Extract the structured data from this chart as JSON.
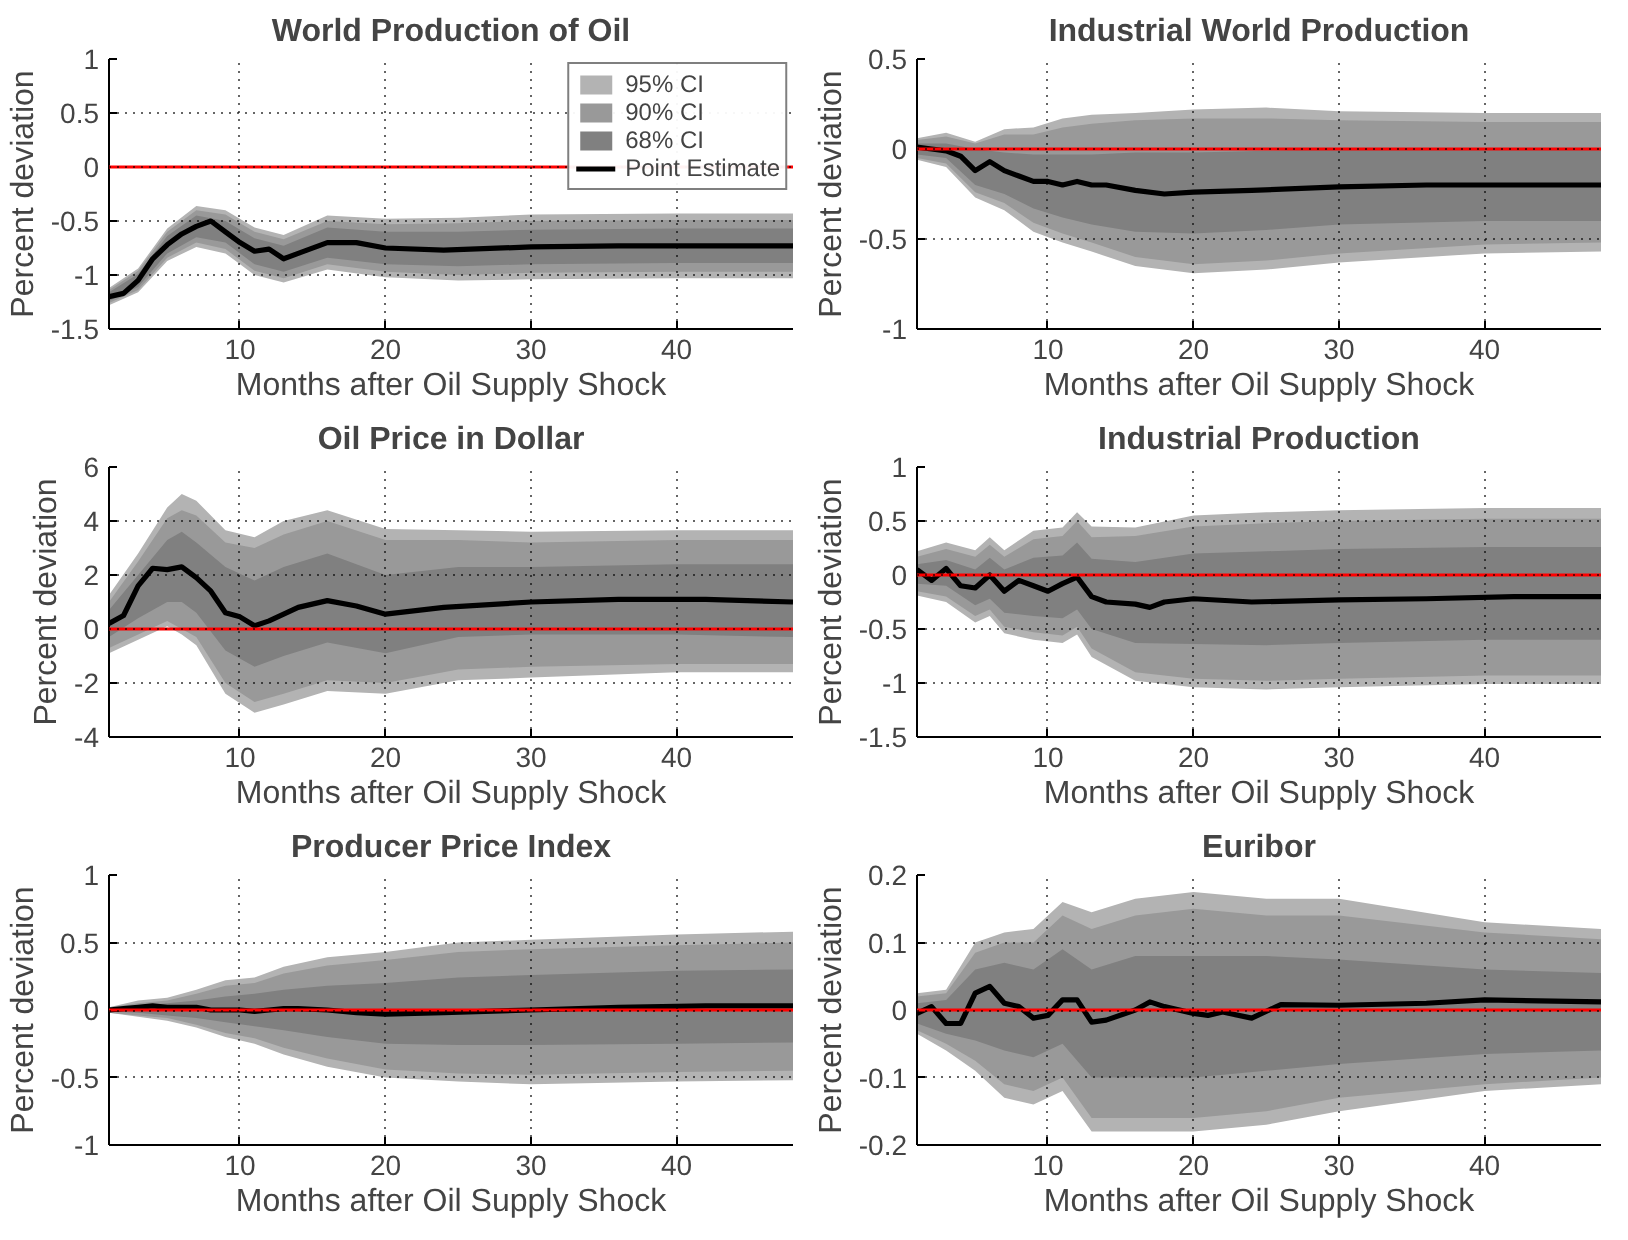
{
  "chart_data": [
    {
      "type": "line",
      "title": "World Production of Oil",
      "xlabel": "Months after Oil Supply Shock",
      "ylabel": "Percent deviation",
      "xlim": [
        1,
        48
      ],
      "xticks": [
        10,
        20,
        30,
        40
      ],
      "ylim": [
        -1.5,
        1
      ],
      "yticks": [
        -1.5,
        -1,
        -0.5,
        0,
        0.5,
        1
      ],
      "grid": true,
      "legend": "top right",
      "ref_lines": [
        {
          "axis": "y",
          "value": 0,
          "color": "#ff0000"
        }
      ],
      "series": [
        {
          "name": "95% CI",
          "color": "#b3b3b3",
          "x": [
            1,
            3,
            5,
            7,
            9,
            11,
            13,
            16,
            20,
            25,
            30,
            40,
            48
          ],
          "values": [
            null,
            null,
            null,
            null,
            null,
            null,
            null,
            null,
            null,
            null,
            null,
            null,
            null
          ],
          "lower": [
            -1.28,
            -1.16,
            -0.87,
            -0.74,
            -0.8,
            -1.0,
            -1.07,
            -0.95,
            -1.02,
            -1.05,
            -1.04,
            -1.03,
            -1.03
          ],
          "upper": [
            -1.12,
            -0.94,
            -0.57,
            -0.36,
            -0.4,
            -0.56,
            -0.63,
            -0.45,
            -0.48,
            -0.47,
            -0.44,
            -0.43,
            -0.43
          ]
        },
        {
          "name": "90% CI",
          "color": "#999999",
          "x": [
            1,
            3,
            5,
            7,
            9,
            11,
            13,
            16,
            20,
            25,
            30,
            40,
            48
          ],
          "values": [
            null,
            null,
            null,
            null,
            null,
            null,
            null,
            null,
            null,
            null,
            null,
            null,
            null
          ],
          "lower": [
            -1.26,
            -1.14,
            -0.84,
            -0.7,
            -0.76,
            -0.96,
            -1.03,
            -0.9,
            -0.97,
            -1.0,
            -0.98,
            -0.97,
            -0.97
          ],
          "upper": [
            -1.14,
            -0.96,
            -0.6,
            -0.4,
            -0.44,
            -0.6,
            -0.67,
            -0.5,
            -0.53,
            -0.52,
            -0.5,
            -0.49,
            -0.49
          ]
        },
        {
          "name": "68% CI",
          "color": "#808080",
          "x": [
            1,
            3,
            5,
            7,
            9,
            11,
            13,
            16,
            20,
            25,
            30,
            40,
            48
          ],
          "values": [
            null,
            null,
            null,
            null,
            null,
            null,
            null,
            null,
            null,
            null,
            null,
            null,
            null
          ],
          "lower": [
            -1.24,
            -1.11,
            -0.8,
            -0.65,
            -0.7,
            -0.9,
            -0.97,
            -0.84,
            -0.9,
            -0.92,
            -0.9,
            -0.89,
            -0.89
          ],
          "upper": [
            -1.16,
            -0.99,
            -0.64,
            -0.45,
            -0.5,
            -0.66,
            -0.73,
            -0.56,
            -0.6,
            -0.6,
            -0.58,
            -0.57,
            -0.57
          ]
        },
        {
          "name": "Point Estimate",
          "type": "line",
          "color": "#000000",
          "x": [
            1,
            2,
            3,
            4,
            5,
            6,
            7,
            8,
            9,
            10,
            11,
            12,
            13,
            14,
            16,
            18,
            20,
            24,
            30,
            36,
            42,
            48
          ],
          "values": [
            -1.2,
            -1.17,
            -1.05,
            -0.85,
            -0.72,
            -0.62,
            -0.55,
            -0.5,
            -0.6,
            -0.7,
            -0.78,
            -0.76,
            -0.85,
            -0.8,
            -0.7,
            -0.7,
            -0.75,
            -0.77,
            -0.74,
            -0.73,
            -0.73,
            -0.73
          ]
        }
      ]
    },
    {
      "type": "line",
      "title": "Industrial World Production",
      "xlabel": "Months after Oil Supply Shock",
      "ylabel": "Percent deviation",
      "xlim": [
        1,
        48
      ],
      "xticks": [
        10,
        20,
        30,
        40
      ],
      "ylim": [
        -1,
        0.5
      ],
      "yticks": [
        -1,
        -0.5,
        0,
        0.5
      ],
      "grid": true,
      "ref_lines": [
        {
          "axis": "y",
          "value": 0,
          "color": "#ff0000"
        }
      ],
      "series": [
        {
          "color": "#b3b3b3",
          "x": [
            1,
            3,
            5,
            7,
            9,
            11,
            13,
            16,
            20,
            25,
            30,
            40,
            48
          ],
          "values": [
            null,
            null,
            null,
            null,
            null,
            null,
            null,
            null,
            null,
            null,
            null,
            null,
            null
          ],
          "lower": [
            -0.06,
            -0.1,
            -0.27,
            -0.34,
            -0.46,
            -0.52,
            -0.57,
            -0.65,
            -0.69,
            -0.67,
            -0.63,
            -0.58,
            -0.57
          ],
          "upper": [
            0.06,
            0.09,
            0.04,
            0.11,
            0.12,
            0.17,
            0.19,
            0.2,
            0.22,
            0.23,
            0.21,
            0.2,
            0.2
          ]
        },
        {
          "color": "#999999",
          "x": [
            1,
            3,
            5,
            7,
            9,
            11,
            13,
            16,
            20,
            25,
            30,
            40,
            48
          ],
          "values": [
            null,
            null,
            null,
            null,
            null,
            null,
            null,
            null,
            null,
            null,
            null,
            null,
            null
          ],
          "lower": [
            -0.05,
            -0.08,
            -0.24,
            -0.3,
            -0.41,
            -0.47,
            -0.52,
            -0.6,
            -0.64,
            -0.62,
            -0.58,
            -0.53,
            -0.52
          ],
          "upper": [
            0.05,
            0.07,
            0.03,
            0.08,
            0.08,
            0.12,
            0.14,
            0.16,
            0.17,
            0.17,
            0.16,
            0.15,
            0.15
          ]
        },
        {
          "color": "#808080",
          "x": [
            1,
            3,
            5,
            7,
            9,
            11,
            13,
            16,
            20,
            25,
            30,
            40,
            48
          ],
          "values": [
            null,
            null,
            null,
            null,
            null,
            null,
            null,
            null,
            null,
            null,
            null,
            null,
            null
          ],
          "lower": [
            -0.03,
            -0.05,
            -0.2,
            -0.25,
            -0.33,
            -0.38,
            -0.42,
            -0.46,
            -0.47,
            -0.45,
            -0.42,
            -0.4,
            -0.4
          ],
          "upper": [
            0.03,
            0.03,
            0.0,
            -0.02,
            -0.03,
            -0.03,
            -0.03,
            -0.02,
            -0.02,
            -0.01,
            0.0,
            0.0,
            0.0
          ]
        },
        {
          "type": "line",
          "color": "#000000",
          "x": [
            1,
            2,
            3,
            4,
            5,
            6,
            7,
            8,
            9,
            10,
            11,
            12,
            13,
            14,
            16,
            18,
            20,
            24,
            30,
            36,
            42,
            48
          ],
          "values": [
            0.01,
            0.0,
            -0.01,
            -0.04,
            -0.12,
            -0.07,
            -0.12,
            -0.15,
            -0.18,
            -0.18,
            -0.2,
            -0.18,
            -0.2,
            -0.2,
            -0.23,
            -0.25,
            -0.24,
            -0.23,
            -0.21,
            -0.2,
            -0.2,
            -0.2
          ]
        }
      ]
    },
    {
      "type": "line",
      "title": "Oil Price in Dollar",
      "xlabel": "Months after Oil Supply Shock",
      "ylabel": "Percent deviation",
      "xlim": [
        1,
        48
      ],
      "xticks": [
        10,
        20,
        30,
        40
      ],
      "ylim": [
        -4,
        6
      ],
      "yticks": [
        -4,
        -2,
        0,
        2,
        4,
        6
      ],
      "grid": true,
      "ref_lines": [
        {
          "axis": "y",
          "value": 0,
          "color": "#ff0000"
        }
      ],
      "series": [
        {
          "color": "#b3b3b3",
          "x": [
            1,
            3,
            5,
            6,
            7,
            9,
            11,
            13,
            16,
            20,
            25,
            30,
            40,
            48
          ],
          "values": [
            null,
            null,
            null,
            null,
            null,
            null,
            null,
            null,
            null,
            null,
            null,
            null,
            null,
            null
          ],
          "lower": [
            -0.9,
            -0.4,
            0.1,
            -0.2,
            -0.6,
            -2.4,
            -3.1,
            -2.8,
            -2.3,
            -2.4,
            -1.9,
            -1.8,
            -1.6,
            -1.6
          ],
          "upper": [
            1.26,
            2.8,
            4.5,
            5.0,
            4.75,
            3.66,
            3.4,
            4.0,
            4.4,
            3.7,
            3.66,
            3.6,
            3.66,
            3.66
          ]
        },
        {
          "color": "#999999",
          "x": [
            1,
            3,
            5,
            6,
            7,
            9,
            11,
            13,
            16,
            20,
            25,
            30,
            40,
            48
          ],
          "values": [
            null,
            null,
            null,
            null,
            null,
            null,
            null,
            null,
            null,
            null,
            null,
            null,
            null,
            null
          ],
          "lower": [
            -0.7,
            -0.2,
            0.3,
            0.0,
            -0.3,
            -2.0,
            -2.7,
            -2.4,
            -1.9,
            -2.0,
            -1.5,
            -1.4,
            -1.3,
            -1.3
          ],
          "upper": [
            1.0,
            2.5,
            4.1,
            4.4,
            4.2,
            3.2,
            3.0,
            3.5,
            4.0,
            3.3,
            3.3,
            3.2,
            3.3,
            3.3
          ]
        },
        {
          "color": "#808080",
          "x": [
            1,
            3,
            5,
            6,
            7,
            9,
            11,
            13,
            16,
            20,
            25,
            30,
            40,
            48
          ],
          "values": [
            null,
            null,
            null,
            null,
            null,
            null,
            null,
            null,
            null,
            null,
            null,
            null,
            null,
            null
          ],
          "lower": [
            -0.3,
            0.4,
            1.0,
            1.0,
            0.6,
            -0.8,
            -1.4,
            -1.0,
            -0.5,
            -0.9,
            -0.3,
            -0.2,
            -0.2,
            -0.3
          ],
          "upper": [
            0.7,
            2.0,
            3.3,
            3.6,
            3.2,
            2.3,
            1.8,
            2.3,
            2.8,
            2.0,
            2.3,
            2.3,
            2.4,
            2.4
          ]
        },
        {
          "type": "line",
          "color": "#000000",
          "x": [
            1,
            2,
            3,
            4,
            5,
            6,
            7,
            8,
            9,
            10,
            11,
            12,
            13,
            14,
            16,
            18,
            20,
            24,
            30,
            36,
            42,
            48
          ],
          "values": [
            0.2,
            0.5,
            1.6,
            2.25,
            2.2,
            2.3,
            1.9,
            1.4,
            0.6,
            0.45,
            0.12,
            0.3,
            0.55,
            0.8,
            1.05,
            0.85,
            0.55,
            0.8,
            1.0,
            1.1,
            1.1,
            1.0
          ]
        }
      ]
    },
    {
      "type": "line",
      "title": "Industrial Production",
      "xlabel": "Months after Oil Supply Shock",
      "ylabel": "Percent deviation",
      "xlim": [
        1,
        48
      ],
      "xticks": [
        10,
        20,
        30,
        40
      ],
      "ylim": [
        -1.5,
        1
      ],
      "yticks": [
        -1.5,
        -1,
        -0.5,
        0,
        0.5,
        1
      ],
      "grid": true,
      "ref_lines": [
        {
          "axis": "y",
          "value": 0,
          "color": "#ff0000"
        }
      ],
      "series": [
        {
          "color": "#b3b3b3",
          "x": [
            1,
            3,
            5,
            6,
            7,
            9,
            11,
            12,
            13,
            16,
            20,
            25,
            30,
            40,
            48
          ],
          "values": [
            null,
            null,
            null,
            null,
            null,
            null,
            null,
            null,
            null,
            null,
            null,
            null,
            null,
            null,
            null
          ],
          "lower": [
            -0.19,
            -0.25,
            -0.44,
            -0.38,
            -0.54,
            -0.6,
            -0.63,
            -0.55,
            -0.76,
            -0.98,
            -1.04,
            -1.06,
            -1.04,
            -1.01,
            -1.01
          ],
          "upper": [
            0.22,
            0.3,
            0.23,
            0.35,
            0.23,
            0.41,
            0.44,
            0.58,
            0.45,
            0.44,
            0.55,
            0.58,
            0.6,
            0.62,
            0.62
          ]
        },
        {
          "color": "#999999",
          "x": [
            1,
            3,
            5,
            6,
            7,
            9,
            11,
            12,
            13,
            16,
            20,
            25,
            30,
            40,
            48
          ],
          "values": [
            null,
            null,
            null,
            null,
            null,
            null,
            null,
            null,
            null,
            null,
            null,
            null,
            null,
            null,
            null
          ],
          "lower": [
            -0.15,
            -0.2,
            -0.38,
            -0.32,
            -0.48,
            -0.53,
            -0.56,
            -0.48,
            -0.68,
            -0.9,
            -0.96,
            -0.98,
            -0.96,
            -0.93,
            -0.93
          ],
          "upper": [
            0.17,
            0.24,
            0.17,
            0.28,
            0.17,
            0.33,
            0.36,
            0.5,
            0.35,
            0.36,
            0.45,
            0.48,
            0.5,
            0.52,
            0.52
          ]
        },
        {
          "color": "#808080",
          "x": [
            1,
            3,
            5,
            6,
            7,
            9,
            11,
            12,
            13,
            16,
            20,
            25,
            30,
            40,
            48
          ],
          "values": [
            null,
            null,
            null,
            null,
            null,
            null,
            null,
            null,
            null,
            null,
            null,
            null,
            null,
            null,
            null
          ],
          "lower": [
            -0.08,
            -0.1,
            -0.28,
            -0.22,
            -0.35,
            -0.38,
            -0.4,
            -0.32,
            -0.5,
            -0.63,
            -0.64,
            -0.65,
            -0.63,
            -0.6,
            -0.6
          ],
          "upper": [
            0.1,
            0.14,
            0.05,
            0.16,
            0.05,
            0.16,
            0.18,
            0.3,
            0.15,
            0.12,
            0.2,
            0.22,
            0.24,
            0.26,
            0.26
          ]
        },
        {
          "type": "line",
          "color": "#000000",
          "x": [
            1,
            2,
            3,
            4,
            5,
            6,
            7,
            8,
            9,
            10,
            11,
            12,
            13,
            14,
            16,
            17,
            18,
            20,
            24,
            30,
            36,
            42,
            48
          ],
          "values": [
            0.05,
            -0.05,
            0.06,
            -0.1,
            -0.12,
            0.0,
            -0.15,
            -0.05,
            -0.1,
            -0.15,
            -0.08,
            -0.02,
            -0.2,
            -0.25,
            -0.27,
            -0.3,
            -0.25,
            -0.22,
            -0.25,
            -0.23,
            -0.22,
            -0.2,
            -0.2
          ]
        }
      ]
    },
    {
      "type": "line",
      "title": "Producer Price Index",
      "xlabel": "Months after Oil Supply Shock",
      "ylabel": "Percent deviation",
      "xlim": [
        1,
        48
      ],
      "xticks": [
        10,
        20,
        30,
        40
      ],
      "ylim": [
        -1,
        1
      ],
      "yticks": [
        -1,
        -0.5,
        0,
        0.5,
        1
      ],
      "grid": true,
      "ref_lines": [
        {
          "axis": "y",
          "value": 0,
          "color": "#ff0000"
        }
      ],
      "series": [
        {
          "color": "#b3b3b3",
          "x": [
            1,
            3,
            5,
            7,
            9,
            11,
            13,
            16,
            20,
            25,
            30,
            40,
            48
          ],
          "values": [
            null,
            null,
            null,
            null,
            null,
            null,
            null,
            null,
            null,
            null,
            null,
            null,
            null
          ],
          "lower": [
            -0.02,
            -0.05,
            -0.08,
            -0.13,
            -0.2,
            -0.25,
            -0.33,
            -0.42,
            -0.5,
            -0.53,
            -0.55,
            -0.53,
            -0.52
          ],
          "upper": [
            0.02,
            0.07,
            0.09,
            0.15,
            0.22,
            0.24,
            0.32,
            0.39,
            0.43,
            0.5,
            0.52,
            0.56,
            0.58
          ]
        },
        {
          "color": "#999999",
          "x": [
            1,
            3,
            5,
            7,
            9,
            11,
            13,
            16,
            20,
            25,
            30,
            40,
            48
          ],
          "values": [
            null,
            null,
            null,
            null,
            null,
            null,
            null,
            null,
            null,
            null,
            null,
            null,
            null
          ],
          "lower": [
            -0.02,
            -0.04,
            -0.06,
            -0.11,
            -0.17,
            -0.21,
            -0.28,
            -0.36,
            -0.44,
            -0.47,
            -0.48,
            -0.46,
            -0.45
          ],
          "upper": [
            0.02,
            0.05,
            0.07,
            0.12,
            0.18,
            0.2,
            0.27,
            0.33,
            0.37,
            0.43,
            0.45,
            0.48,
            0.5
          ]
        },
        {
          "color": "#808080",
          "x": [
            1,
            3,
            5,
            7,
            9,
            11,
            13,
            16,
            20,
            25,
            30,
            40,
            48
          ],
          "values": [
            null,
            null,
            null,
            null,
            null,
            null,
            null,
            null,
            null,
            null,
            null,
            null,
            null
          ],
          "lower": [
            -0.01,
            -0.02,
            -0.04,
            -0.06,
            -0.09,
            -0.12,
            -0.15,
            -0.2,
            -0.25,
            -0.26,
            -0.26,
            -0.25,
            -0.24
          ],
          "upper": [
            0.01,
            0.03,
            0.05,
            0.07,
            0.1,
            0.12,
            0.15,
            0.18,
            0.2,
            0.24,
            0.26,
            0.29,
            0.3
          ]
        },
        {
          "type": "line",
          "color": "#000000",
          "x": [
            1,
            2,
            3,
            4,
            5,
            6,
            7,
            8,
            9,
            10,
            11,
            12,
            13,
            14,
            16,
            18,
            20,
            24,
            30,
            36,
            42,
            48
          ],
          "values": [
            0.0,
            0.01,
            0.02,
            0.03,
            0.02,
            0.02,
            0.02,
            0.0,
            0.0,
            0.0,
            -0.01,
            0.0,
            0.01,
            0.01,
            0.0,
            -0.02,
            -0.03,
            -0.02,
            0.0,
            0.02,
            0.03,
            0.03
          ]
        }
      ]
    },
    {
      "type": "line",
      "title": "Euribor",
      "xlabel": "Months after Oil Supply Shock",
      "ylabel": "Percent deviation",
      "xlim": [
        1,
        48
      ],
      "xticks": [
        10,
        20,
        30,
        40
      ],
      "ylim": [
        -0.2,
        0.2
      ],
      "yticks": [
        -0.2,
        -0.1,
        0,
        0.1,
        0.2
      ],
      "grid": true,
      "ref_lines": [
        {
          "axis": "y",
          "value": 0,
          "color": "#ff0000"
        }
      ],
      "series": [
        {
          "color": "#b3b3b3",
          "x": [
            1,
            3,
            5,
            7,
            9,
            11,
            13,
            16,
            20,
            25,
            30,
            40,
            48
          ],
          "values": [
            null,
            null,
            null,
            null,
            null,
            null,
            null,
            null,
            null,
            null,
            null,
            null,
            null
          ],
          "lower": [
            -0.035,
            -0.06,
            -0.09,
            -0.13,
            -0.14,
            -0.12,
            -0.18,
            -0.18,
            -0.18,
            -0.17,
            -0.15,
            -0.12,
            -0.11
          ],
          "upper": [
            0.025,
            0.03,
            0.1,
            0.115,
            0.12,
            0.16,
            0.145,
            0.165,
            0.175,
            0.165,
            0.165,
            0.13,
            0.12
          ]
        },
        {
          "color": "#999999",
          "x": [
            1,
            3,
            5,
            7,
            9,
            11,
            13,
            16,
            20,
            25,
            30,
            40,
            48
          ],
          "values": [
            null,
            null,
            null,
            null,
            null,
            null,
            null,
            null,
            null,
            null,
            null,
            null,
            null
          ],
          "lower": [
            -0.03,
            -0.05,
            -0.075,
            -0.11,
            -0.12,
            -0.1,
            -0.16,
            -0.16,
            -0.16,
            -0.15,
            -0.13,
            -0.11,
            -0.1
          ],
          "upper": [
            0.02,
            0.025,
            0.085,
            0.1,
            0.1,
            0.14,
            0.12,
            0.14,
            0.15,
            0.14,
            0.14,
            0.115,
            0.105
          ]
        },
        {
          "color": "#808080",
          "x": [
            1,
            3,
            5,
            7,
            9,
            11,
            13,
            16,
            20,
            25,
            30,
            40,
            48
          ],
          "values": [
            null,
            null,
            null,
            null,
            null,
            null,
            null,
            null,
            null,
            null,
            null,
            null,
            null
          ],
          "lower": [
            -0.02,
            -0.035,
            -0.045,
            -0.06,
            -0.07,
            -0.05,
            -0.1,
            -0.1,
            -0.1,
            -0.09,
            -0.08,
            -0.065,
            -0.06
          ],
          "upper": [
            0.01,
            0.015,
            0.06,
            0.07,
            0.06,
            0.09,
            0.06,
            0.08,
            0.08,
            0.08,
            0.075,
            0.06,
            0.055
          ]
        },
        {
          "type": "line",
          "color": "#000000",
          "x": [
            1,
            2,
            3,
            4,
            5,
            6,
            7,
            8,
            9,
            10,
            11,
            12,
            13,
            14,
            16,
            17,
            18,
            20,
            21,
            22,
            24,
            26,
            30,
            36,
            40,
            48
          ],
          "values": [
            -0.005,
            0.005,
            -0.02,
            -0.02,
            0.025,
            0.035,
            0.01,
            0.005,
            -0.012,
            -0.008,
            0.015,
            0.015,
            -0.018,
            -0.015,
            0.0,
            0.012,
            0.005,
            -0.005,
            -0.008,
            -0.003,
            -0.012,
            0.008,
            0.007,
            0.01,
            0.015,
            0.012
          ]
        }
      ]
    }
  ]
}
